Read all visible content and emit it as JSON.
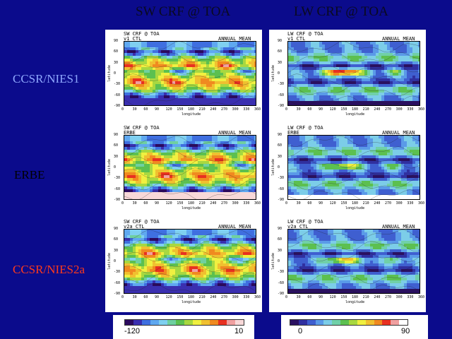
{
  "column_titles": {
    "sw": "SW CRF @ TOA",
    "lw": "LW CRF @ TOA"
  },
  "row_labels": [
    {
      "text": "CCSR/NIES1",
      "color": "#8fa8ff"
    },
    {
      "text": "ERBE",
      "color": "#000000"
    },
    {
      "text": "CCSR/NIES2a",
      "color": "#ff3a1a"
    }
  ],
  "panels": [
    {
      "title": "SW CRF @ TOA",
      "subtitle": "v1   CTL",
      "mean": "ANNUAL MEAN",
      "field": "sw",
      "variant": 0
    },
    {
      "title": "LW CRF @ TOA",
      "subtitle": "v1   CTL",
      "mean": "ANNUAL MEAN",
      "field": "lw",
      "variant": 0
    },
    {
      "title": "SW CRF @ TOA",
      "subtitle": "ERBE",
      "mean": "ANNUAL MEAN",
      "field": "sw",
      "variant": 1
    },
    {
      "title": "LW CRF @ TOA",
      "subtitle": "ERBE",
      "mean": "ANNUAL MEAN",
      "field": "lw",
      "variant": 1
    },
    {
      "title": "SW CRF @ TOA",
      "subtitle": "v2a CTL",
      "mean": "ANNUAL MEAN",
      "field": "sw",
      "variant": 2
    },
    {
      "title": "LW CRF @ TOA",
      "subtitle": "v2a CTL",
      "mean": "ANNUAL MEAN",
      "field": "lw",
      "variant": 2
    }
  ],
  "axes": {
    "ylabel": "latitude",
    "xlabel": "longitude",
    "yticks": [
      "90",
      "60",
      "30",
      "0",
      "-30",
      "-60",
      "-90"
    ],
    "xticks": [
      "0",
      "30",
      "60",
      "90",
      "120",
      "150",
      "180",
      "210",
      "240",
      "270",
      "300",
      "330",
      "360"
    ]
  },
  "colorbars": {
    "sw": {
      "min": "-120",
      "max": "10"
    },
    "lw": {
      "min": "0",
      "max": "90"
    }
  },
  "colors": {
    "background": "#0b0b8c",
    "sw_palette": [
      "#2b0a5e",
      "#3a2fb0",
      "#3f6fe0",
      "#5fa8f0",
      "#7fd0f0",
      "#6fd0a0",
      "#5cc050",
      "#a8d840",
      "#f0f040",
      "#f0c030",
      "#f08a20",
      "#e83020",
      "#f0a0a0",
      "#f8d8d8"
    ],
    "lw_palette": [
      "#ffffff",
      "#2a1060",
      "#3030a0",
      "#3f5fd0",
      "#5a9ae8",
      "#7ccde8",
      "#70d0a8",
      "#5cc050",
      "#a8d840",
      "#f0f040",
      "#f0c030",
      "#f08a20",
      "#e83020",
      "#f0a0a0",
      "#ffffff"
    ]
  }
}
